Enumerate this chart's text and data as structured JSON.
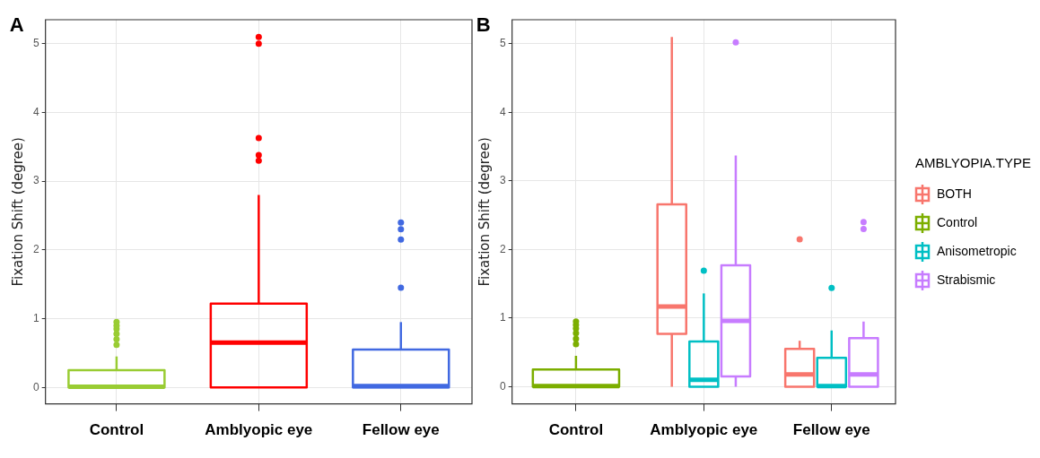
{
  "chart_data": [
    {
      "type": "box",
      "title": "A",
      "ylabel": "Fixation Shift (degree)",
      "categories": [
        "Control",
        "Amblyopic eye",
        "Fellow eye"
      ],
      "series": [
        {
          "colors": [
            "#99cc33",
            "#ff0000",
            "#4169e1"
          ],
          "boxes": [
            {
              "low": 0,
              "q1": 0,
              "median": 0.01,
              "q3": 0.25,
              "high": 0.45,
              "outliers": [
                0.62,
                0.7,
                0.78,
                0.85,
                0.9,
                0.95
              ]
            },
            {
              "low": 0,
              "q1": 0,
              "median": 0.65,
              "q3": 1.22,
              "high": 2.8,
              "outliers": [
                3.3,
                3.38,
                3.63,
                5.0,
                5.1
              ]
            },
            {
              "low": 0,
              "q1": 0,
              "median": 0.02,
              "q3": 0.55,
              "high": 0.95,
              "outliers": [
                1.45,
                2.15,
                2.3,
                2.4
              ]
            }
          ]
        }
      ],
      "ylim": [
        -0.24,
        5.35
      ],
      "yticks": [
        0,
        1,
        2,
        3,
        4,
        5
      ],
      "grid": true
    },
    {
      "type": "box",
      "title": "B",
      "ylabel": "Fixation Shift (degree)",
      "categories": [
        "Control",
        "Amblyopic eye",
        "Fellow eye"
      ],
      "legend_title": "AMBLYOPIA.TYPE",
      "legend": "right",
      "series": [
        {
          "name": "BOTH",
          "color": "#f8766d",
          "boxes": [
            null,
            {
              "low": 0,
              "q1": 0.77,
              "median": 1.17,
              "q3": 2.66,
              "high": 5.1
            },
            {
              "low": 0,
              "q1": 0,
              "median": 0.18,
              "q3": 0.55,
              "high": 0.67,
              "outliers": [
                2.15
              ]
            }
          ]
        },
        {
          "name": "Control",
          "color": "#7cae00",
          "boxes": [
            {
              "low": 0,
              "q1": 0,
              "median": 0.01,
              "q3": 0.25,
              "high": 0.45,
              "outliers": [
                0.62,
                0.7,
                0.78,
                0.85,
                0.9,
                0.95
              ]
            },
            null,
            null
          ]
        },
        {
          "name": "Anisometropic",
          "color": "#00bfc4",
          "boxes": [
            null,
            {
              "low": 0,
              "q1": 0,
              "median": 0.1,
              "q3": 0.66,
              "high": 1.36,
              "outliers": [
                1.69
              ]
            },
            {
              "low": 0,
              "q1": 0,
              "median": 0.01,
              "q3": 0.42,
              "high": 0.82,
              "outliers": [
                1.44
              ]
            }
          ]
        },
        {
          "name": "Strabismic",
          "color": "#c77cff",
          "boxes": [
            null,
            {
              "low": 0,
              "q1": 0.15,
              "median": 0.96,
              "q3": 1.77,
              "high": 3.37,
              "outliers": [
                5.02
              ]
            },
            {
              "low": 0,
              "q1": 0,
              "median": 0.18,
              "q3": 0.71,
              "high": 0.95,
              "outliers": [
                2.3,
                2.4
              ]
            }
          ]
        }
      ],
      "ylim": [
        -0.25,
        5.35
      ],
      "yticks": [
        0,
        1,
        2,
        3,
        4,
        5
      ],
      "grid": true
    }
  ]
}
